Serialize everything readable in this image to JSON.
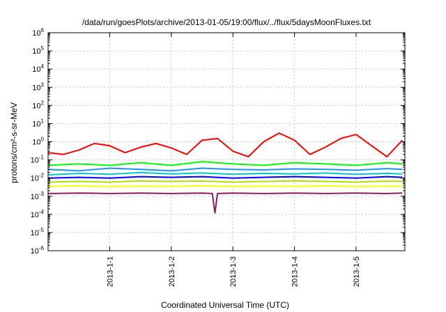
{
  "chart_data": {
    "type": "line",
    "title": "/data/run/goesPlots/archive/2013-01-05/19:00/flux/../flux/5daysMoonFluxes.txt",
    "xlabel": "Coordinated Universal Time (UTC)",
    "ylabel": "protons/cm²-s-sr-MeV",
    "y_scale": "log",
    "ylim": [
      1e-06,
      1000000.0
    ],
    "xlim": [
      "2012-12-31 00:00",
      "2013-01-05 19:00"
    ],
    "grid": true,
    "legend": "none",
    "x_ticks": [
      "2013-1-1",
      "2013-1-2",
      "2013-1-3",
      "2013-1-4",
      "2013-1-5"
    ],
    "y_ticks": [
      "10-6",
      "10-5",
      "10-4",
      "10-3",
      "10-2",
      "10-1",
      "100",
      "101",
      "102",
      "103",
      "104",
      "105",
      "106"
    ],
    "series": [
      {
        "color": "#ff0000",
        "x": [
          "2012-12-31 00:00",
          "2012-12-31 06:00",
          "2012-12-31 12:00",
          "2012-12-31 18:00",
          "2013-01-01 00:00",
          "2013-01-01 06:00",
          "2013-01-01 12:00",
          "2013-01-01 18:00",
          "2013-01-02 00:00",
          "2013-01-02 06:00",
          "2013-01-02 12:00",
          "2013-01-02 18:00",
          "2013-01-03 00:00",
          "2013-01-03 06:00",
          "2013-01-03 12:00",
          "2013-01-03 18:00",
          "2013-01-04 00:00",
          "2013-01-04 06:00",
          "2013-01-04 12:00",
          "2013-01-04 18:00",
          "2013-01-05 00:00",
          "2013-01-05 06:00",
          "2013-01-05 12:00",
          "2013-01-05 18:00"
        ],
        "values": [
          0.25,
          0.2,
          0.35,
          0.8,
          0.6,
          0.25,
          0.5,
          0.8,
          0.45,
          0.2,
          1.2,
          1.5,
          0.3,
          0.15,
          1.0,
          3.0,
          1.2,
          0.2,
          0.5,
          1.5,
          2.5,
          0.6,
          0.15,
          1.2
        ]
      },
      {
        "color": "#00ff00",
        "x": [
          "2012-12-31 00:00",
          "2012-12-31 12:00",
          "2013-01-01 00:00",
          "2013-01-01 12:00",
          "2013-01-02 00:00",
          "2013-01-02 12:00",
          "2013-01-03 00:00",
          "2013-01-03 12:00",
          "2013-01-04 00:00",
          "2013-01-04 12:00",
          "2013-01-05 00:00",
          "2013-01-05 12:00",
          "2013-01-05 18:00"
        ],
        "values": [
          0.05,
          0.06,
          0.05,
          0.07,
          0.05,
          0.08,
          0.06,
          0.05,
          0.07,
          0.06,
          0.05,
          0.07,
          0.06
        ]
      },
      {
        "color": "#1e90ff",
        "x": [
          "2012-12-31 00:00",
          "2012-12-31 12:00",
          "2013-01-01 00:00",
          "2013-01-01 12:00",
          "2013-01-02 00:00",
          "2013-01-02 12:00",
          "2013-01-03 00:00",
          "2013-01-03 12:00",
          "2013-01-04 00:00",
          "2013-01-04 12:00",
          "2013-01-05 00:00",
          "2013-01-05 12:00",
          "2013-01-05 18:00"
        ],
        "values": [
          0.03,
          0.025,
          0.035,
          0.03,
          0.025,
          0.035,
          0.03,
          0.028,
          0.032,
          0.03,
          0.027,
          0.033,
          0.03
        ]
      },
      {
        "color": "#00c8c8",
        "x": [
          "2012-12-31 00:00",
          "2012-12-31 12:00",
          "2013-01-01 00:00",
          "2013-01-01 12:00",
          "2013-01-02 00:00",
          "2013-01-02 12:00",
          "2013-01-03 00:00",
          "2013-01-03 12:00",
          "2013-01-04 00:00",
          "2013-01-04 12:00",
          "2013-01-05 00:00",
          "2013-01-05 12:00",
          "2013-01-05 18:00"
        ],
        "values": [
          0.015,
          0.018,
          0.016,
          0.02,
          0.017,
          0.019,
          0.016,
          0.018,
          0.017,
          0.019,
          0.016,
          0.018,
          0.017
        ]
      },
      {
        "color": "#0000ff",
        "x": [
          "2012-12-31 00:00",
          "2012-12-31 12:00",
          "2013-01-01 00:00",
          "2013-01-01 12:00",
          "2013-01-02 00:00",
          "2013-01-02 12:00",
          "2013-01-03 00:00",
          "2013-01-03 12:00",
          "2013-01-04 00:00",
          "2013-01-04 12:00",
          "2013-01-05 00:00",
          "2013-01-05 12:00",
          "2013-01-05 18:00"
        ],
        "values": [
          0.01,
          0.011,
          0.01,
          0.012,
          0.011,
          0.012,
          0.01,
          0.011,
          0.012,
          0.011,
          0.01,
          0.012,
          0.011
        ]
      },
      {
        "color": "#b0e000",
        "x": [
          "2012-12-31 00:00",
          "2012-12-31 12:00",
          "2013-01-01 00:00",
          "2013-01-01 12:00",
          "2013-01-02 00:00",
          "2013-01-02 12:00",
          "2013-01-03 00:00",
          "2013-01-03 12:00",
          "2013-01-04 00:00",
          "2013-01-04 12:00",
          "2013-01-05 00:00",
          "2013-01-05 12:00",
          "2013-01-05 18:00"
        ],
        "values": [
          0.006,
          0.0065,
          0.006,
          0.007,
          0.0065,
          0.0068,
          0.006,
          0.0065,
          0.007,
          0.0065,
          0.006,
          0.0068,
          0.0065
        ]
      },
      {
        "color": "#ffff00",
        "x": [
          "2012-12-31 00:00",
          "2012-12-31 12:00",
          "2013-01-01 00:00",
          "2013-01-01 12:00",
          "2013-01-02 00:00",
          "2013-01-02 12:00",
          "2013-01-03 00:00",
          "2013-01-03 12:00",
          "2013-01-04 00:00",
          "2013-01-04 12:00",
          "2013-01-05 00:00",
          "2013-01-05 12:00",
          "2013-01-05 18:00"
        ],
        "values": [
          0.0035,
          0.0037,
          0.0034,
          0.0036,
          0.0035,
          0.0037,
          0.0034,
          0.0036,
          0.0035,
          0.0037,
          0.0034,
          0.0036,
          0.0035
        ]
      },
      {
        "color": "#8b1a6b",
        "x": [
          "2012-12-31 00:00",
          "2012-12-31 12:00",
          "2013-01-01 00:00",
          "2013-01-01 12:00",
          "2013-01-02 00:00",
          "2013-01-02 12:00",
          "2013-01-02 16:00",
          "2013-01-02 17:00",
          "2013-01-02 18:00",
          "2013-01-03 00:00",
          "2013-01-03 12:00",
          "2013-01-04 00:00",
          "2013-01-04 12:00",
          "2013-01-05 00:00",
          "2013-01-05 12:00",
          "2013-01-05 18:00"
        ],
        "values": [
          0.0014,
          0.0015,
          0.0014,
          0.0015,
          0.0014,
          0.0015,
          0.0014,
          0.00012,
          0.0014,
          0.0015,
          0.0014,
          0.0015,
          0.0014,
          0.0015,
          0.0014,
          0.0015
        ]
      }
    ]
  }
}
